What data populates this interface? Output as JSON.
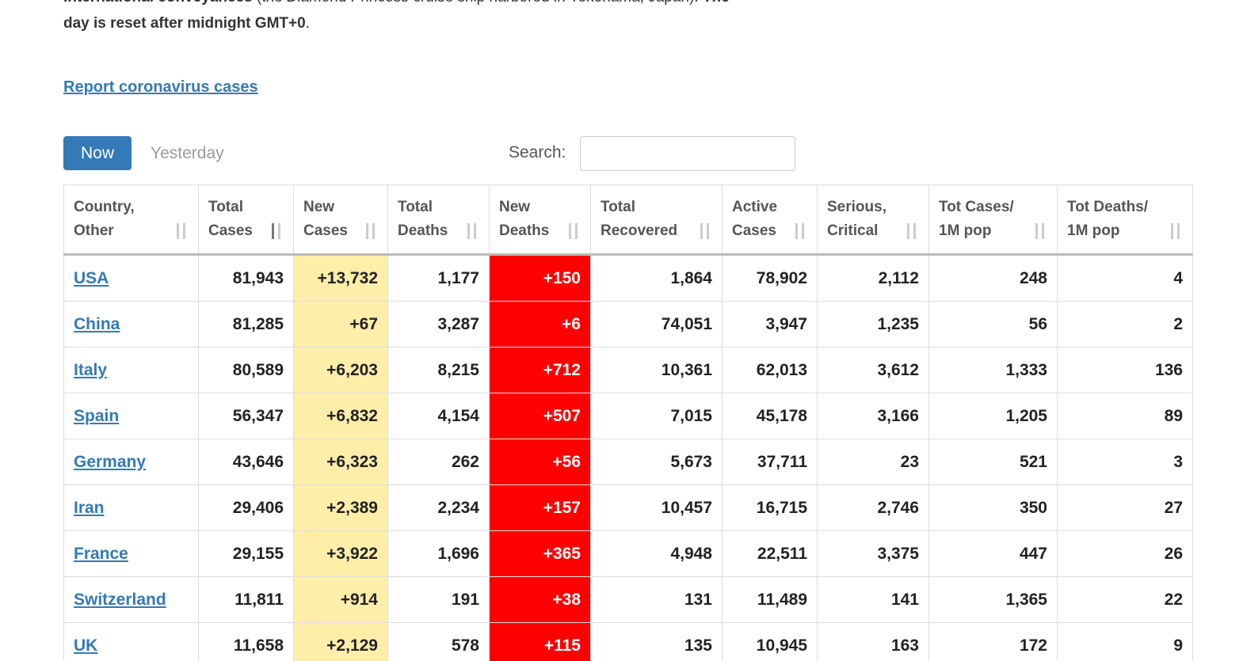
{
  "intro": {
    "segments": [
      {
        "text": "International conveyances",
        "style": "bold"
      },
      {
        "text": " (the ",
        "style": "normal"
      },
      {
        "text": "Diamond Princess",
        "style": "italic"
      },
      {
        "text": " cruise ship harbored in Yokohama, Japan). ",
        "style": "normal"
      },
      {
        "text": "The",
        "style": "bold"
      }
    ],
    "line2": [
      {
        "text": "day is reset after midnight GMT+0",
        "style": "bold"
      },
      {
        "text": ".",
        "style": "normal"
      }
    ]
  },
  "report_link": "Report coronavirus cases",
  "tabs": [
    "Now",
    "Yesterday"
  ],
  "search_label": "Search:",
  "table": {
    "header": [
      [
        "Country,",
        "Other"
      ],
      [
        "Total",
        "Cases"
      ],
      [
        "New",
        "Cases"
      ],
      [
        "Total",
        "Deaths"
      ],
      [
        "New",
        "Deaths"
      ],
      [
        "Total",
        "Recovered"
      ],
      [
        "Active",
        "Cases"
      ],
      [
        "Serious,",
        "Critical"
      ],
      [
        "Tot Cases/",
        "1M pop"
      ],
      [
        "Tot Deaths/",
        "1M pop"
      ]
    ],
    "rows": [
      [
        "USA",
        "81,943",
        "+13,732",
        "1,177",
        "+150",
        "1,864",
        "78,902",
        "2,112",
        "248",
        "4"
      ],
      [
        "China",
        "81,285",
        "+67",
        "3,287",
        "+6",
        "74,051",
        "3,947",
        "1,235",
        "56",
        "2"
      ],
      [
        "Italy",
        "80,589",
        "+6,203",
        "8,215",
        "+712",
        "10,361",
        "62,013",
        "3,612",
        "1,333",
        "136"
      ],
      [
        "Spain",
        "56,347",
        "+6,832",
        "4,154",
        "+507",
        "7,015",
        "45,178",
        "3,166",
        "1,205",
        "89"
      ],
      [
        "Germany",
        "43,646",
        "+6,323",
        "262",
        "+56",
        "5,673",
        "37,711",
        "23",
        "521",
        "3"
      ],
      [
        "Iran",
        "29,406",
        "+2,389",
        "2,234",
        "+157",
        "10,457",
        "16,715",
        "2,746",
        "350",
        "27"
      ],
      [
        "France",
        "29,155",
        "+3,922",
        "1,696",
        "+365",
        "4,948",
        "22,511",
        "3,375",
        "447",
        "26"
      ],
      [
        "Switzerland",
        "11,811",
        "+914",
        "191",
        "+38",
        "131",
        "11,489",
        "141",
        "1,365",
        "22"
      ],
      [
        "UK",
        "11,658",
        "+2,129",
        "578",
        "+115",
        "135",
        "10,945",
        "163",
        "172",
        "9"
      ]
    ]
  }
}
